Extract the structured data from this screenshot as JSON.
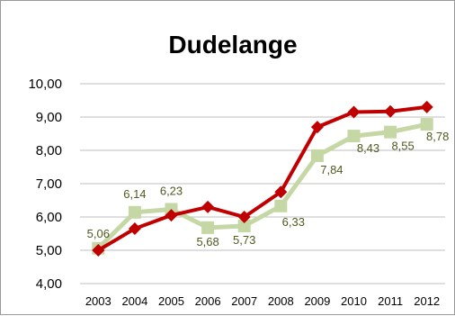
{
  "chart_data": {
    "type": "line",
    "title": "Dudelange",
    "xlabel": "",
    "ylabel": "",
    "x": [
      "2003",
      "2004",
      "2005",
      "2006",
      "2007",
      "2008",
      "2009",
      "2010",
      "2011",
      "2012"
    ],
    "ylim": [
      4,
      10
    ],
    "yticks": [
      "4,00",
      "5,00",
      "6,00",
      "7,00",
      "8,00",
      "9,00",
      "10,00"
    ],
    "grid": true,
    "legend": "none",
    "series": [
      {
        "color": "#c00000",
        "marker": "diamond",
        "values": [
          5.0,
          5.65,
          6.05,
          6.3,
          6.0,
          6.75,
          8.7,
          9.15,
          9.17,
          9.3
        ],
        "show_labels": false
      },
      {
        "color": "#c4d7a4",
        "marker": "square",
        "values": [
          5.06,
          6.14,
          6.23,
          5.68,
          5.73,
          6.33,
          7.84,
          8.43,
          8.55,
          8.78
        ],
        "labels": [
          "5,06",
          "6,14",
          "6,23",
          "5,68",
          "5,73",
          "6,33",
          "7,84",
          "8,43",
          "8,55",
          "8,78"
        ],
        "show_labels": true
      }
    ]
  }
}
